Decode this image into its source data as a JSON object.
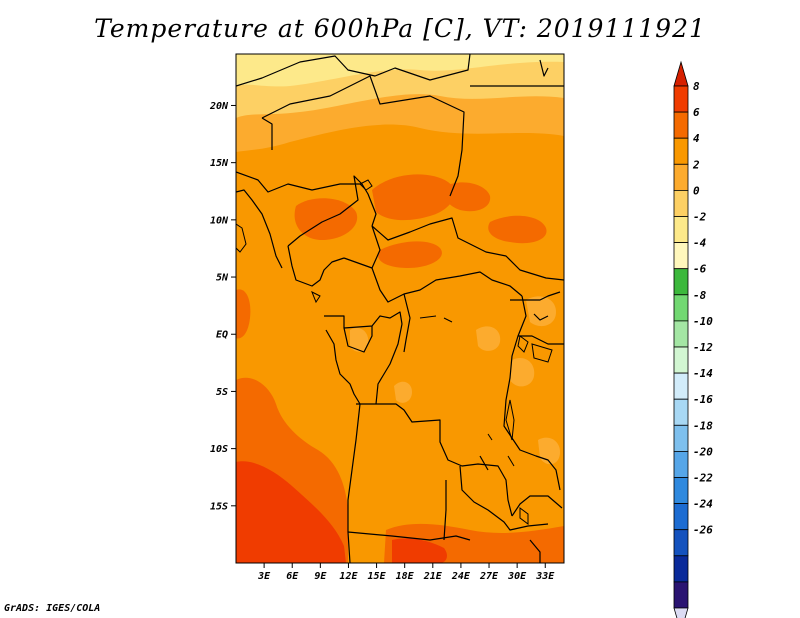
{
  "title": "Temperature at 600hPa [C], VT: 2019111921",
  "credit": "GrADS: IGES/COLA",
  "map": {
    "region": "Central Africa",
    "lat_labels": [
      "20N",
      "15N",
      "10N",
      "5N",
      "EQ",
      "5S",
      "10S",
      "15S"
    ],
    "lat_values": [
      20,
      15,
      10,
      5,
      0,
      -5,
      -10,
      -15
    ],
    "lon_labels": [
      "3E",
      "6E",
      "9E",
      "12E",
      "15E",
      "18E",
      "21E",
      "24E",
      "27E",
      "30E",
      "33E"
    ],
    "lon_values": [
      3,
      6,
      9,
      12,
      15,
      18,
      21,
      24,
      27,
      30,
      33
    ],
    "lat_range": [
      -20,
      24.5
    ],
    "lon_range": [
      0,
      35
    ]
  },
  "colorbar": {
    "labels": [
      "8",
      "6",
      "4",
      "2",
      "0",
      "-2",
      "-4",
      "-6",
      "-8",
      "-10",
      "-12",
      "-14",
      "-16",
      "-18",
      "-20",
      "-22",
      "-24",
      "-26"
    ],
    "colors": [
      "#d62000",
      "#f03c00",
      "#f46a00",
      "#f99800",
      "#fcab2e",
      "#fdd064",
      "#fde98a",
      "#fff7bc",
      "#3cb83c",
      "#72d872",
      "#a4e6a4",
      "#d2f6d2",
      "#d2ecfa",
      "#a8d8f4",
      "#7ec0ee",
      "#56a6e8",
      "#2f89de",
      "#1c6cd2",
      "#1452be",
      "#0a2a9a",
      "#2a1472",
      "#dcdcf4"
    ]
  }
}
